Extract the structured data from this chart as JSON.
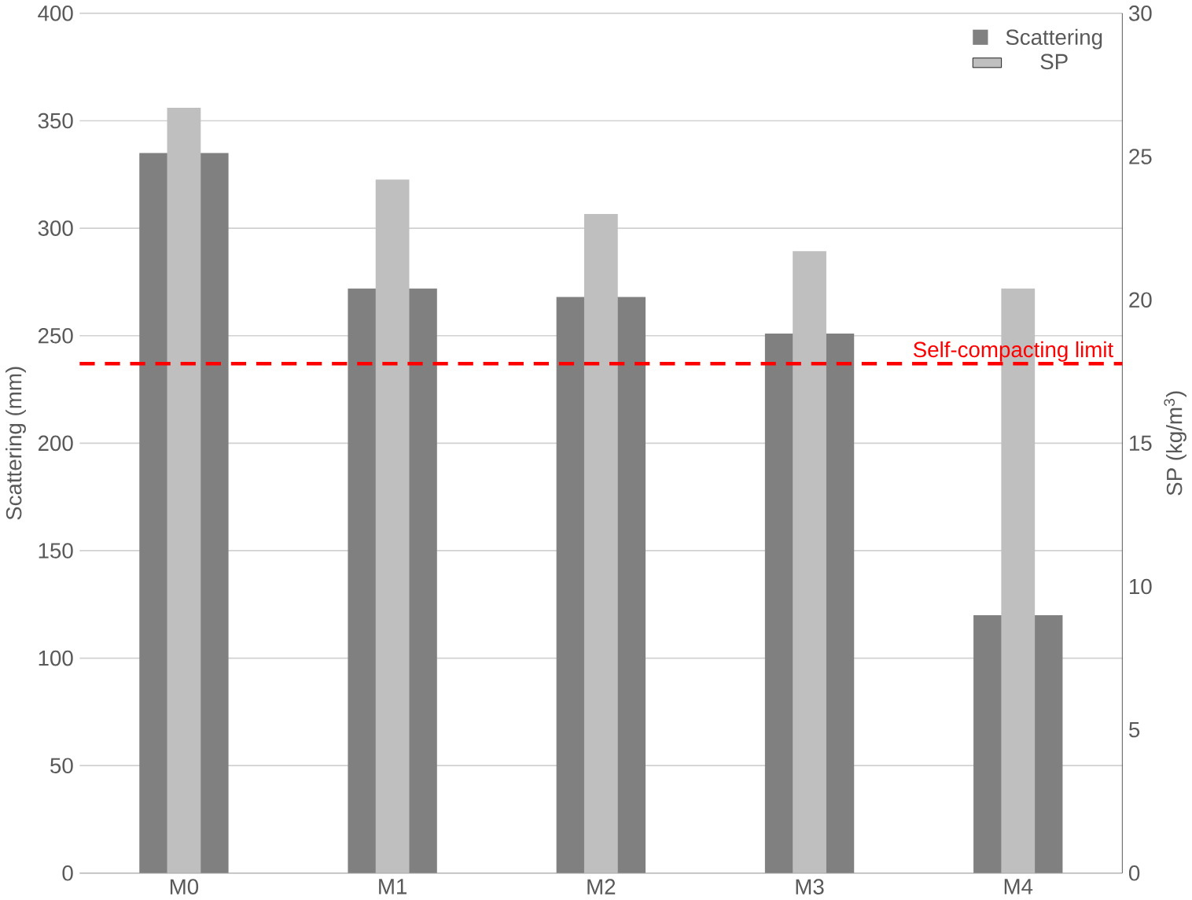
{
  "chart_data": {
    "type": "bar",
    "ylabel": "Scattering (mm)",
    "y2label": "SP (kg/m$^{3}$)",
    "categories": [
      "M0",
      "M1",
      "M2",
      "M3",
      "M4"
    ],
    "series": [
      {
        "name": "Scattering",
        "color": "#808080",
        "values": [
          335,
          272,
          268,
          251,
          120
        ]
      },
      {
        "name": "SP",
        "color": "#bfbfbf",
        "axis": "y2",
        "values": [
          26.7,
          24.2,
          23.0,
          21.7,
          20.4
        ]
      }
    ],
    "ylim": [
      0,
      400
    ],
    "yticks": [
      0,
      50,
      100,
      150,
      200,
      250,
      300,
      350,
      400
    ],
    "y2lim": [
      0,
      30
    ],
    "y2ticks": [
      0,
      5,
      10,
      15,
      20,
      25,
      30
    ],
    "ref_lines": [
      {
        "axis": "y",
        "value": 237,
        "label": "Self-compacting limit",
        "color": "#ff0000",
        "line_style": "dashed"
      }
    ],
    "grid": "y",
    "legend": "top right"
  }
}
